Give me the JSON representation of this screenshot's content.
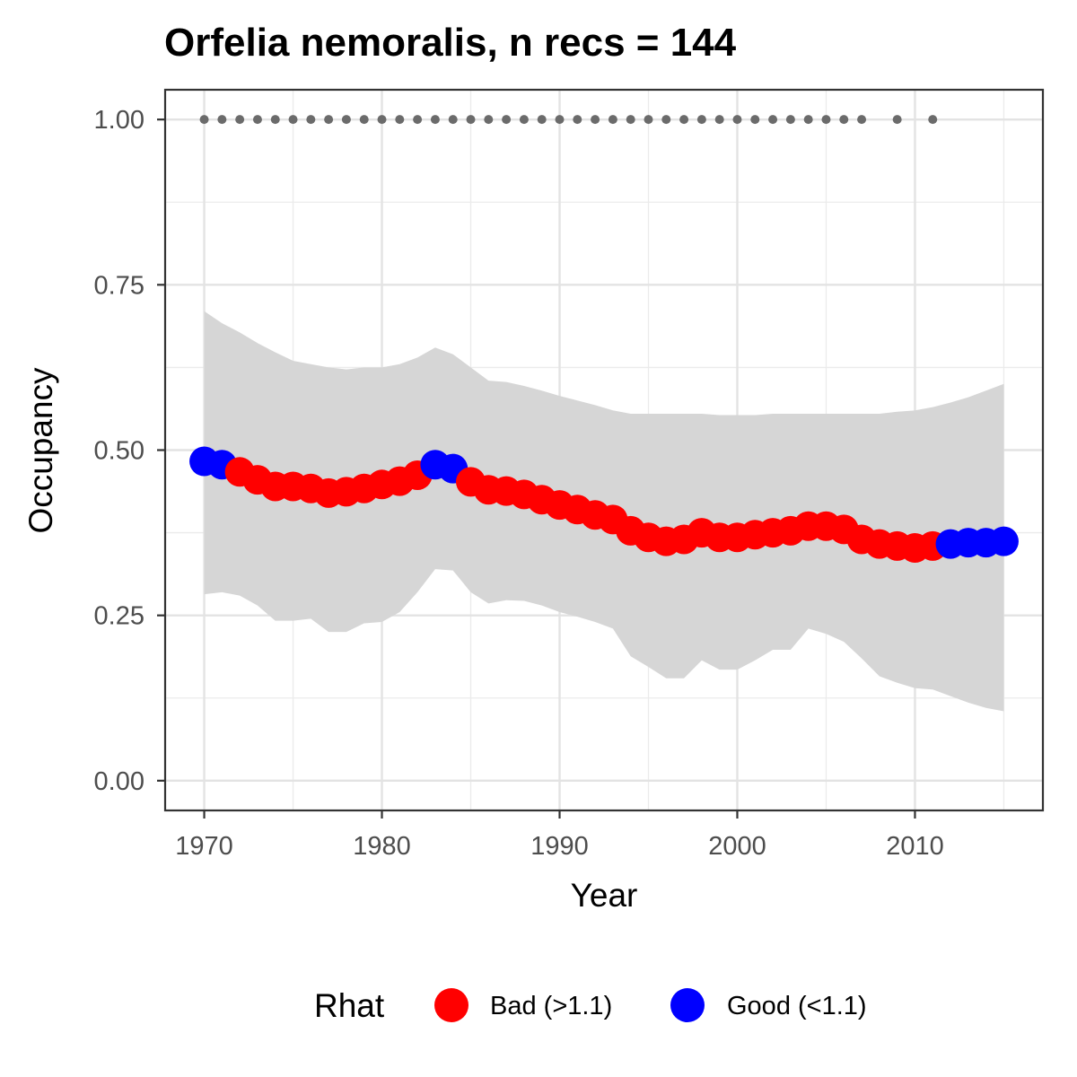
{
  "chart_data": {
    "type": "line",
    "title": "Orfelia nemoralis, n recs = 144",
    "xlabel": "Year",
    "ylabel": "Occupancy",
    "xlim": [
      1967.8,
      1917.2
    ],
    "ylim": [
      -0.045,
      1.045
    ],
    "x_ticks": [
      1970,
      1980,
      1990,
      2000,
      2010
    ],
    "y_ticks": [
      0.0,
      0.25,
      0.5,
      0.75,
      1.0
    ],
    "x_tick_labels": [
      "1970",
      "1980",
      "1990",
      "2000",
      "2010"
    ],
    "y_tick_labels": [
      "0.00",
      "0.25",
      "0.50",
      "0.75",
      "1.00"
    ],
    "grid": true,
    "legend": {
      "title": "Rhat",
      "position": "bottom",
      "entries": [
        {
          "label": "Bad (>1.1)",
          "color": "#ff0000"
        },
        {
          "label": "Good (<1.1)",
          "color": "#0000ff"
        }
      ]
    },
    "colors": {
      "bad": "#ff0000",
      "good": "#0000ff",
      "ribbon": "#d6d6d6",
      "records": "#6b6b6b"
    },
    "years": [
      1970,
      1971,
      1972,
      1973,
      1974,
      1975,
      1976,
      1977,
      1978,
      1979,
      1980,
      1981,
      1982,
      1983,
      1984,
      1985,
      1986,
      1987,
      1988,
      1989,
      1990,
      1991,
      1992,
      1993,
      1994,
      1995,
      1996,
      1997,
      1998,
      1999,
      2000,
      2001,
      2002,
      2003,
      2004,
      2005,
      2006,
      2007,
      2008,
      2009,
      2010,
      2011,
      2012,
      2013,
      2014,
      2015
    ],
    "occupancy": [
      0.483,
      0.478,
      0.467,
      0.455,
      0.445,
      0.445,
      0.442,
      0.435,
      0.437,
      0.442,
      0.448,
      0.453,
      0.462,
      0.478,
      0.472,
      0.452,
      0.44,
      0.438,
      0.433,
      0.425,
      0.417,
      0.41,
      0.402,
      0.395,
      0.378,
      0.368,
      0.362,
      0.365,
      0.375,
      0.368,
      0.368,
      0.372,
      0.375,
      0.378,
      0.385,
      0.385,
      0.38,
      0.365,
      0.358,
      0.355,
      0.352,
      0.355,
      0.358,
      0.36,
      0.36,
      0.362
    ],
    "rhat_status": [
      "Good",
      "Good",
      "Bad",
      "Bad",
      "Bad",
      "Bad",
      "Bad",
      "Bad",
      "Bad",
      "Bad",
      "Bad",
      "Bad",
      "Bad",
      "Good",
      "Good",
      "Bad",
      "Bad",
      "Bad",
      "Bad",
      "Bad",
      "Bad",
      "Bad",
      "Bad",
      "Bad",
      "Bad",
      "Bad",
      "Bad",
      "Bad",
      "Bad",
      "Bad",
      "Bad",
      "Bad",
      "Bad",
      "Bad",
      "Bad",
      "Bad",
      "Bad",
      "Bad",
      "Bad",
      "Bad",
      "Bad",
      "Bad",
      "Good",
      "Good",
      "Good",
      "Good"
    ],
    "upper_95": [
      0.71,
      0.692,
      0.678,
      0.662,
      0.648,
      0.635,
      0.63,
      0.625,
      0.622,
      0.625,
      0.625,
      0.63,
      0.64,
      0.655,
      0.645,
      0.625,
      0.605,
      0.603,
      0.597,
      0.59,
      0.582,
      0.575,
      0.568,
      0.56,
      0.555,
      0.555,
      0.555,
      0.555,
      0.555,
      0.553,
      0.553,
      0.553,
      0.555,
      0.555,
      0.555,
      0.555,
      0.555,
      0.555,
      0.555,
      0.558,
      0.56,
      0.565,
      0.572,
      0.58,
      0.59,
      0.6
    ],
    "lower_95": [
      0.282,
      0.285,
      0.28,
      0.265,
      0.242,
      0.242,
      0.245,
      0.225,
      0.225,
      0.238,
      0.24,
      0.255,
      0.285,
      0.32,
      0.318,
      0.285,
      0.268,
      0.273,
      0.272,
      0.265,
      0.255,
      0.248,
      0.24,
      0.23,
      0.188,
      0.172,
      0.155,
      0.155,
      0.182,
      0.168,
      0.168,
      0.182,
      0.198,
      0.198,
      0.23,
      0.222,
      0.21,
      0.185,
      0.158,
      0.148,
      0.14,
      0.138,
      0.128,
      0.118,
      0.11,
      0.105
    ],
    "record_years": [
      1970,
      1971,
      1972,
      1973,
      1974,
      1975,
      1976,
      1977,
      1978,
      1979,
      1980,
      1981,
      1982,
      1983,
      1984,
      1985,
      1986,
      1987,
      1988,
      1989,
      1990,
      1991,
      1992,
      1993,
      1994,
      1995,
      1996,
      1997,
      1998,
      1999,
      2000,
      2001,
      2002,
      2003,
      2004,
      2005,
      2006,
      2007,
      2009,
      2011
    ],
    "record_value": 1.0
  }
}
